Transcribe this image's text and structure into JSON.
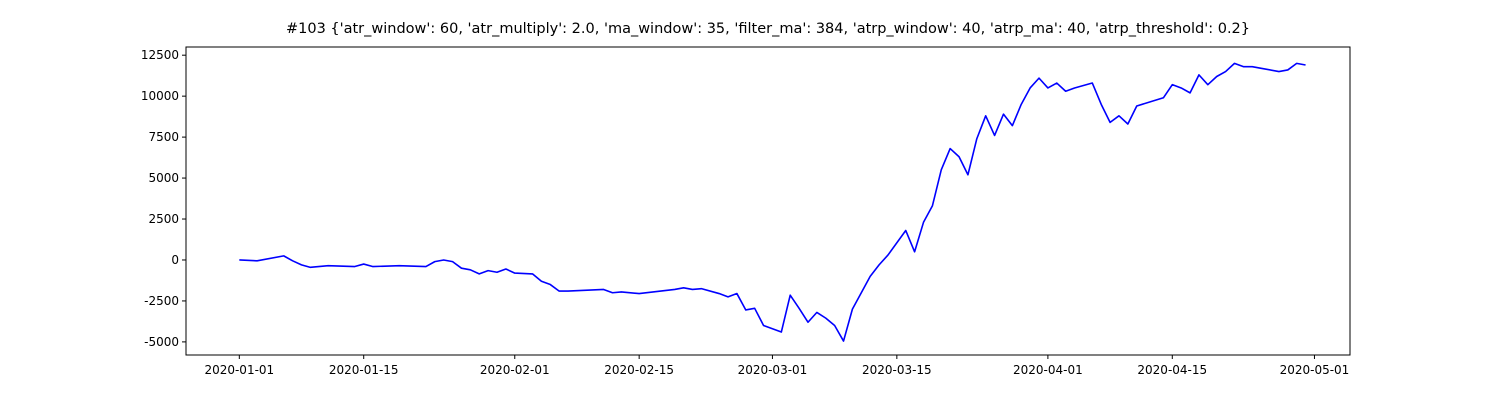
{
  "chart_data": {
    "type": "line",
    "title": "#103 {'atr_window': 60, 'atr_multiply': 2.0, 'ma_window': 35, 'filter_ma': 384, 'atrp_window': 40, 'atrp_ma': 40, 'atrp_threshold': 0.2}",
    "color": "#0000ff",
    "x": [
      "2020-01-01",
      "2020-01-03",
      "2020-01-06",
      "2020-01-07",
      "2020-01-08",
      "2020-01-09",
      "2020-01-11",
      "2020-01-14",
      "2020-01-15",
      "2020-01-16",
      "2020-01-19",
      "2020-01-22",
      "2020-01-23",
      "2020-01-24",
      "2020-01-25",
      "2020-01-26",
      "2020-01-27",
      "2020-01-28",
      "2020-01-29",
      "2020-01-30",
      "2020-01-31",
      "2020-02-01",
      "2020-02-03",
      "2020-02-04",
      "2020-02-05",
      "2020-02-06",
      "2020-02-07",
      "2020-02-11",
      "2020-02-12",
      "2020-02-13",
      "2020-02-15",
      "2020-02-19",
      "2020-02-20",
      "2020-02-21",
      "2020-02-22",
      "2020-02-24",
      "2020-02-25",
      "2020-02-26",
      "2020-02-27",
      "2020-02-28",
      "2020-02-29",
      "2020-03-02",
      "2020-03-03",
      "2020-03-04",
      "2020-03-05",
      "2020-03-06",
      "2020-03-07",
      "2020-03-08",
      "2020-03-09",
      "2020-03-10",
      "2020-03-11",
      "2020-03-12",
      "2020-03-13",
      "2020-03-14",
      "2020-03-16",
      "2020-03-17",
      "2020-03-18",
      "2020-03-19",
      "2020-03-20",
      "2020-03-21",
      "2020-03-22",
      "2020-03-23",
      "2020-03-24",
      "2020-03-25",
      "2020-03-26",
      "2020-03-27",
      "2020-03-28",
      "2020-03-29",
      "2020-03-30",
      "2020-03-31",
      "2020-04-01",
      "2020-04-02",
      "2020-04-03",
      "2020-04-04",
      "2020-04-06",
      "2020-04-07",
      "2020-04-08",
      "2020-04-09",
      "2020-04-10",
      "2020-04-11",
      "2020-04-14",
      "2020-04-15",
      "2020-04-16",
      "2020-04-17",
      "2020-04-18",
      "2020-04-19",
      "2020-04-20",
      "2020-04-21",
      "2020-04-22",
      "2020-04-23",
      "2020-04-24",
      "2020-04-25",
      "2020-04-27",
      "2020-04-28",
      "2020-04-29",
      "2020-04-30"
    ],
    "values": [
      0,
      -50,
      250,
      -50,
      -300,
      -450,
      -350,
      -400,
      -250,
      -400,
      -350,
      -400,
      -100,
      0,
      -100,
      -500,
      -600,
      -850,
      -650,
      -750,
      -550,
      -800,
      -850,
      -1300,
      -1500,
      -1900,
      -1900,
      -1800,
      -2000,
      -1950,
      -2050,
      -1800,
      -1700,
      -1800,
      -1750,
      -2050,
      -2250,
      -2050,
      -3050,
      -2950,
      -4000,
      -4400,
      -2150,
      -2950,
      -3800,
      -3200,
      -3550,
      -4000,
      -4950,
      -3000,
      -2000,
      -1000,
      -300,
      300,
      1800,
      500,
      2300,
      3300,
      5500,
      6800,
      6300,
      5200,
      7400,
      8800,
      7600,
      8900,
      8200,
      9500,
      10500,
      11100,
      10500,
      10800,
      10300,
      10500,
      10800,
      9500,
      8400,
      8800,
      8300,
      9400,
      9900,
      10700,
      10500,
      10200,
      11300,
      10700,
      11200,
      11500,
      12000,
      11800,
      11800,
      11700,
      11500,
      11600,
      12000,
      11900
    ],
    "xlim": [
      "2019-12-26",
      "2020-05-05"
    ],
    "xticks": [
      "2020-01-01",
      "2020-01-15",
      "2020-02-01",
      "2020-02-15",
      "2020-03-01",
      "2020-03-15",
      "2020-04-01",
      "2020-04-15",
      "2020-05-01"
    ],
    "ylim": [
      -5800,
      13000
    ],
    "yticks": [
      -5000,
      -2500,
      0,
      2500,
      5000,
      7500,
      10000,
      12500
    ]
  }
}
